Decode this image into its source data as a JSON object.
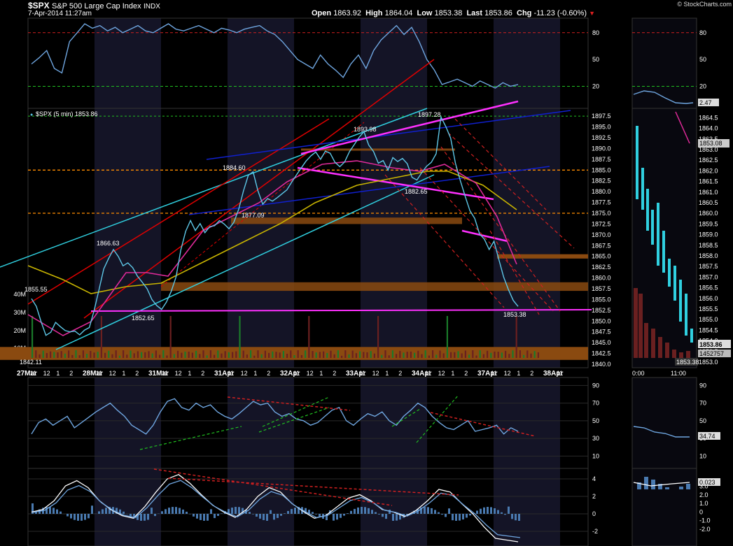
{
  "header": {
    "ticker": "$SPX",
    "name": "S&P 500 Large Cap Index",
    "exchange": "INDX",
    "datetime": "7-Apr-2014 11:27am",
    "open_label": "Open",
    "open": "1863.92",
    "high_label": "High",
    "high": "1864.04",
    "low_label": "Low",
    "low": "1853.38",
    "last_label": "Last",
    "last": "1853.86",
    "chg_label": "Chg",
    "chg": "-11.23 (-0.60%)",
    "credit": "© StockCharts.com"
  },
  "colors": {
    "background": "#000000",
    "price": "#5ec8e8",
    "indicator": "#6fa6e0",
    "ma_pink": "#e02a9a",
    "ma_yellow": "#c8b400",
    "trend_red": "#e00000",
    "trend_blue": "#1020d0",
    "trend_cyan": "#30d0e0",
    "trend_magenta": "#ff30ff",
    "zone": "#8a4a10",
    "green_dash": "#20c020",
    "red_dash": "#d02020",
    "orange_dash": "#ff8c00",
    "session_band": "#141426"
  },
  "chart_data": [
    {
      "type": "line",
      "panel": "rsi_top",
      "y_ticks": [
        20,
        50,
        80
      ],
      "reference_lines": [
        80,
        20
      ],
      "series": [
        {
          "values": [
            45,
            52,
            60,
            40,
            35,
            70,
            80,
            90,
            85,
            88,
            82,
            86,
            80,
            84,
            88,
            82,
            80,
            85,
            90,
            84,
            82,
            85,
            88,
            84,
            80,
            85,
            83,
            80,
            84,
            86,
            88,
            82,
            78,
            70,
            60,
            50,
            45,
            40,
            55,
            45,
            38,
            30,
            45,
            55,
            40,
            60,
            72,
            80,
            88,
            78,
            86,
            70,
            50,
            38,
            22,
            25,
            28,
            24,
            20,
            26,
            22,
            18,
            24,
            20,
            22
          ]
        }
      ],
      "panel_labels": [
        {
          "text": "2.47"
        }
      ],
      "right_panel_ticks": [
        20,
        50,
        80
      ]
    },
    {
      "type": "line",
      "panel": "price",
      "title": "$SPX (5 min) 1853.86",
      "ylim": [
        1840,
        1898.5
      ],
      "y_ticks": [
        1840.0,
        1842.5,
        1845.0,
        1847.5,
        1850.0,
        1852.5,
        1855.0,
        1857.5,
        1860.0,
        1862.5,
        1865.0,
        1867.5,
        1870.0,
        1872.5,
        1875.0,
        1877.5,
        1880.0,
        1882.5,
        1885.0,
        1887.5,
        1890.0,
        1892.5,
        1895.0,
        1897.5
      ],
      "series": [
        {
          "values": [
            1855.2,
            1853.4,
            1849.8,
            1846.7,
            1847.4,
            1849.7,
            1848.7,
            1847.8,
            1847.5,
            1847.7,
            1846.8,
            1847.9,
            1848.5,
            1852.5,
            1857.2,
            1862.1,
            1864.5,
            1866.6,
            1865.0,
            1862.8,
            1863.5,
            1862.4,
            1860.4,
            1859.0,
            1857.5,
            1855.0,
            1853.6,
            1852.7,
            1854.4,
            1856.9,
            1860.2,
            1866.5,
            1870.8,
            1873.3,
            1871.0,
            1872.6,
            1870.5,
            1871.9,
            1872.1,
            1873.3,
            1872.5,
            1871.4,
            1872.9,
            1875.9,
            1880.2,
            1883.8,
            1884.6,
            1880.2,
            1877.1,
            1878.4,
            1877.8,
            1878.6,
            1879.5,
            1880.4,
            1882.2,
            1883.9,
            1885.5,
            1887.1,
            1888.3,
            1889.2,
            1887.5,
            1889.4,
            1888.9,
            1886.8,
            1885.8,
            1886.9,
            1889.3,
            1890.9,
            1892.6,
            1893.9,
            1890.8,
            1889.3,
            1886.6,
            1887.2,
            1885.0,
            1887.9,
            1887.0,
            1887.7,
            1886.5,
            1883.3,
            1882.7,
            1884.4,
            1885.9,
            1886.8,
            1888.8,
            1897.3,
            1895.1,
            1892.4,
            1886.6,
            1882.6,
            1879.0,
            1875.6,
            1873.8,
            1870.2,
            1869.0,
            1866.6,
            1868.5,
            1864.3,
            1860.2,
            1857.3,
            1854.8,
            1853.4
          ]
        }
      ],
      "label_values": {
        "open_marker": "1855.55",
        "a": "1866.63",
        "b": "1852.65",
        "c": "1884.60",
        "d": "1877.09",
        "e": "1893.98",
        "f": "1882.65",
        "g": "1897.28",
        "h": "1853.38",
        "bottom": "1842.11"
      },
      "right_labels": {
        "last": "1853.86",
        "volume": "1452757",
        "low": "1853.38",
        "current_ma": "1853.08"
      },
      "volume_ticks": [
        "10M",
        "20M",
        "30M",
        "40M"
      ],
      "x_labels": [
        "27Mar",
        "11",
        "12",
        "1",
        "2",
        "28Mar",
        "11",
        "12",
        "1",
        "2",
        "31Mar",
        "11",
        "12",
        "1",
        "2",
        "31Apr",
        "11",
        "12",
        "1",
        "2",
        "32Apr",
        "11",
        "12",
        "1",
        "2",
        "33Apr",
        "11",
        "12",
        "1",
        "2",
        "34Apr",
        "11",
        "12",
        "1",
        "2",
        "37Apr",
        "11",
        "12",
        "1",
        "2",
        "38Apr",
        "11"
      ],
      "right_panel_x_labels": [
        "0:00",
        "11:00"
      ],
      "right_panel_ticks": [
        1853.0,
        1853.5,
        1854.0,
        1854.5,
        1855.0,
        1855.5,
        1856.0,
        1856.5,
        1857.0,
        1857.5,
        1858.0,
        1858.5,
        1859.0,
        1859.5,
        1860.0,
        1860.5,
        1861.0,
        1861.5,
        1862.0,
        1862.5,
        1863.0,
        1863.5,
        1864.0,
        1864.5
      ]
    },
    {
      "type": "line",
      "panel": "rsi_mid",
      "y_ticks": [
        10,
        30,
        50,
        70,
        90
      ],
      "series": [
        {
          "values": [
            35,
            48,
            52,
            45,
            50,
            55,
            42,
            48,
            54,
            60,
            65,
            70,
            62,
            55,
            45,
            40,
            35,
            45,
            60,
            72,
            75,
            65,
            62,
            70,
            65,
            68,
            60,
            55,
            52,
            58,
            65,
            72,
            68,
            70,
            60,
            55,
            58,
            52,
            50,
            45,
            48,
            55,
            62,
            65,
            50,
            45,
            52,
            58,
            55,
            60,
            50,
            45,
            55,
            62,
            70,
            65,
            55,
            48,
            42,
            40,
            45,
            50,
            38,
            40,
            42,
            45,
            35,
            42,
            38
          ]
        }
      ],
      "panel_labels": [
        {
          "text": "34.74"
        }
      ],
      "right_panel_ticks": [
        10,
        30,
        50,
        70,
        90
      ]
    },
    {
      "type": "line",
      "panel": "macd",
      "y_ticks": [
        -2,
        0,
        2,
        4
      ],
      "series": [
        {
          "values": [
            0.2,
            0.5,
            1.5,
            3.2,
            3.8,
            3.0,
            1.5,
            0.5,
            -0.2,
            -0.5,
            0.8,
            2.5,
            4.0,
            4.5,
            3.5,
            2.2,
            1.0,
            0.2,
            -0.4,
            0.5,
            2.0,
            3.0,
            2.5,
            1.2,
            0.3,
            -0.5,
            -0.2,
            0.8,
            1.8,
            2.2,
            1.5,
            0.5,
            0.2,
            -0.3,
            0.4,
            1.5,
            2.8,
            2.5,
            1.2,
            0.0,
            -1.5,
            -2.8,
            -3.0,
            -3.2
          ]
        }
      ],
      "panel_labels": [
        {
          "text": "0.023"
        }
      ],
      "right_panel_ticks": [
        "-2.0",
        "-1.0",
        "0",
        "1.0",
        "2.0",
        "3.0"
      ]
    }
  ]
}
